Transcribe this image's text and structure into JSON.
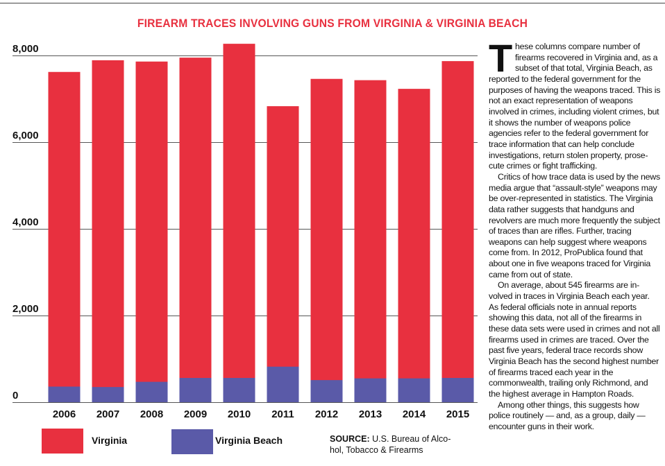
{
  "title": "FIREARM TRACES INVOLVING GUNS FROM VIRGINIA & VIRGINIA BEACH",
  "colors": {
    "virginia": "#e8303f",
    "virginia_beach": "#5a5aa8",
    "title": "#e8303f",
    "grid": "#555555"
  },
  "chart_data": {
    "type": "bar",
    "stacking": "overlay",
    "categories": [
      "2006",
      "2007",
      "2008",
      "2009",
      "2010",
      "2011",
      "2012",
      "2013",
      "2014",
      "2015"
    ],
    "series": [
      {
        "name": "Virginia",
        "values": [
          7620,
          7890,
          7860,
          7950,
          8270,
          6830,
          7460,
          7430,
          7230,
          7870
        ]
      },
      {
        "name": "Virginia Beach",
        "values": [
          360,
          350,
          470,
          560,
          560,
          820,
          510,
          550,
          550,
          560
        ]
      }
    ],
    "yticks": [
      0,
      2000,
      4000,
      6000,
      8000
    ],
    "ytick_labels": [
      "0",
      "2,000",
      "4,000",
      "6,000",
      "8,000"
    ],
    "ylim": [
      0,
      8000
    ],
    "xlabel": "",
    "ylabel": "",
    "grid": true,
    "legend_position": "bottom-left"
  },
  "legend": {
    "virginia": "Virginia",
    "virginia_beach": "Virginia Beach"
  },
  "source": {
    "label": "SOURCE:",
    "text": "U.S. Bureau of Alco-hol, Tobacco & Firearms"
  },
  "article": {
    "drop_cap": "T",
    "paragraphs": [
      "hese columns compare number of firearms recovered in Virginia and, as a subset of that total, Virginia Beach, as reported to the federal government for the purposes of having the weapons traced. This is not an exact representation of weapons involved in crimes, including violent crimes, but it shows the number of weapons police agencies refer to the federal government for trace information that can help conclude investigations, return stolen property, prose-cute crimes or fight trafficking.",
      "Critics of how trace data is used by the news media argue that “assault-style” weapons may be over-represented in statistics. The Virginia data rather suggests that handguns and revolvers are much more frequently the subject of traces than are rifles. Further, tracing weapons can help suggest where weapons come from. In 2012, ProPublica found that about one in five weapons traced for Virginia came from out of state.",
      "On average, about 545 firearms are in-volved in traces in Virginia Beach each year. As federal officials note in annual reports showing this data, not all of the firearms in these data sets were used in crimes and not all firearms used in crimes are traced. Over the past five years, federal trace records show Virginia Beach has the second highest number of firearms traced each year in the commonwealth, trailing only Richmond, and the highest average in Hampton Roads.",
      "Among other things, this suggests how police routinely — and, as a group, daily — encounter guns in their work."
    ]
  }
}
